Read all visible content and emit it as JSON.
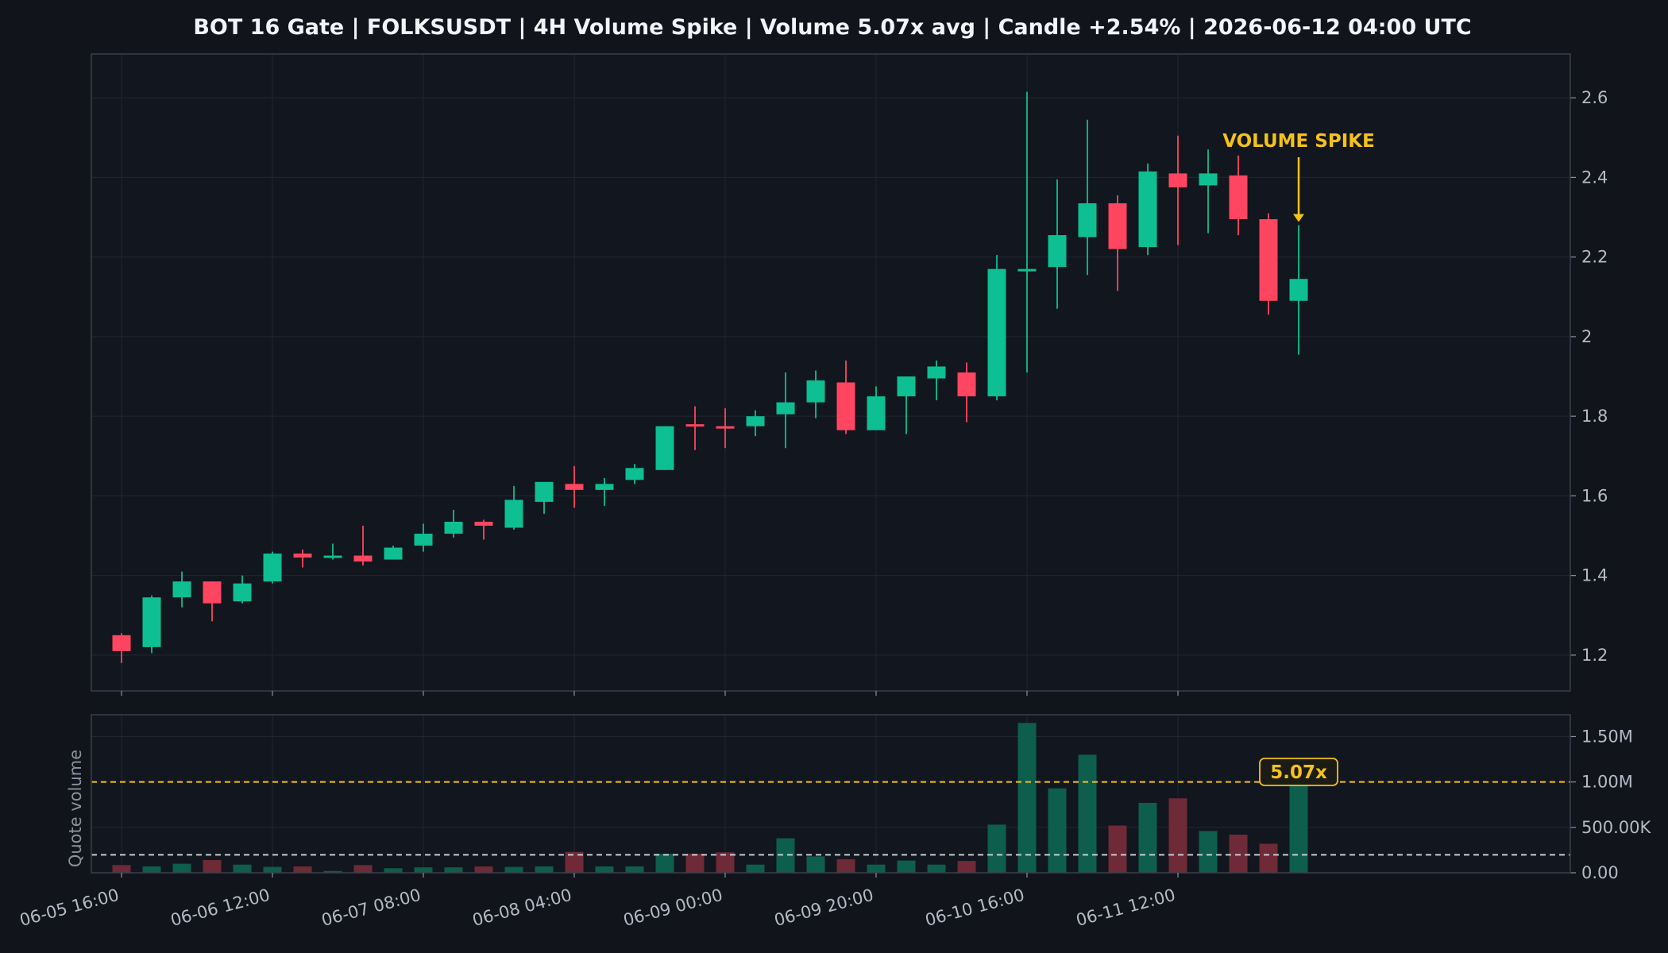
{
  "chart_data": {
    "type": "candlestick",
    "title": "BOT 16 Gate | FOLKSUSDT | 4H Volume Spike | Volume 5.07x avg | Candle +2.54% | 2026-06-12 04:00 UTC",
    "price_axis": {
      "ylim": [
        1.11,
        2.71
      ],
      "ticks": [
        1.2,
        1.4,
        1.6,
        1.8,
        2,
        2.2,
        2.4,
        2.6
      ],
      "tick_labels": [
        "1.2",
        "1.4",
        "1.6",
        "1.8",
        "2",
        "2.2",
        "2.4",
        "2.6"
      ]
    },
    "volume_axis": {
      "ylabel": "Quote volume",
      "ylim": [
        0,
        1740000
      ],
      "ticks": [
        0,
        500000,
        1000000,
        1500000
      ],
      "tick_labels": [
        "0.00",
        "500.00K",
        "1.00M",
        "1.50M"
      ]
    },
    "x_tick_labels": [
      "06-05 16:00",
      "06-06 12:00",
      "06-07 08:00",
      "06-08 04:00",
      "06-09 00:00",
      "06-09 20:00",
      "06-10 16:00",
      "06-11 12:00"
    ],
    "x_tick_indices": [
      0,
      5,
      10,
      15,
      20,
      25,
      30,
      35
    ],
    "num_slots": 48,
    "candles": [
      {
        "o": 1.25,
        "h": 1.255,
        "l": 1.18,
        "c": 1.21,
        "v": 85000
      },
      {
        "o": 1.22,
        "h": 1.35,
        "l": 1.205,
        "c": 1.345,
        "v": 70000
      },
      {
        "o": 1.345,
        "h": 1.41,
        "l": 1.32,
        "c": 1.385,
        "v": 100000
      },
      {
        "o": 1.385,
        "h": 1.385,
        "l": 1.285,
        "c": 1.33,
        "v": 140000
      },
      {
        "o": 1.335,
        "h": 1.4,
        "l": 1.33,
        "c": 1.38,
        "v": 90000
      },
      {
        "o": 1.385,
        "h": 1.46,
        "l": 1.38,
        "c": 1.455,
        "v": 65000
      },
      {
        "o": 1.455,
        "h": 1.465,
        "l": 1.42,
        "c": 1.445,
        "v": 70000
      },
      {
        "o": 1.445,
        "h": 1.48,
        "l": 1.44,
        "c": 1.45,
        "v": 20000
      },
      {
        "o": 1.45,
        "h": 1.525,
        "l": 1.425,
        "c": 1.435,
        "v": 85000
      },
      {
        "o": 1.44,
        "h": 1.475,
        "l": 1.44,
        "c": 1.47,
        "v": 50000
      },
      {
        "o": 1.475,
        "h": 1.53,
        "l": 1.46,
        "c": 1.505,
        "v": 60000
      },
      {
        "o": 1.505,
        "h": 1.565,
        "l": 1.495,
        "c": 1.535,
        "v": 60000
      },
      {
        "o": 1.535,
        "h": 1.54,
        "l": 1.49,
        "c": 1.525,
        "v": 70000
      },
      {
        "o": 1.52,
        "h": 1.625,
        "l": 1.515,
        "c": 1.59,
        "v": 65000
      },
      {
        "o": 1.585,
        "h": 1.635,
        "l": 1.555,
        "c": 1.635,
        "v": 70000
      },
      {
        "o": 1.63,
        "h": 1.675,
        "l": 1.57,
        "c": 1.615,
        "v": 230000
      },
      {
        "o": 1.615,
        "h": 1.645,
        "l": 1.575,
        "c": 1.63,
        "v": 70000
      },
      {
        "o": 1.64,
        "h": 1.68,
        "l": 1.63,
        "c": 1.67,
        "v": 70000
      },
      {
        "o": 1.665,
        "h": 1.775,
        "l": 1.665,
        "c": 1.775,
        "v": 210000
      },
      {
        "o": 1.78,
        "h": 1.825,
        "l": 1.715,
        "c": 1.775,
        "v": 210000
      },
      {
        "o": 1.775,
        "h": 1.82,
        "l": 1.72,
        "c": 1.77,
        "v": 225000
      },
      {
        "o": 1.775,
        "h": 1.815,
        "l": 1.75,
        "c": 1.8,
        "v": 90000
      },
      {
        "o": 1.805,
        "h": 1.91,
        "l": 1.72,
        "c": 1.835,
        "v": 380000
      },
      {
        "o": 1.835,
        "h": 1.915,
        "l": 1.795,
        "c": 1.89,
        "v": 180000
      },
      {
        "o": 1.885,
        "h": 1.94,
        "l": 1.755,
        "c": 1.765,
        "v": 150000
      },
      {
        "o": 1.765,
        "h": 1.875,
        "l": 1.765,
        "c": 1.85,
        "v": 90000
      },
      {
        "o": 1.85,
        "h": 1.9,
        "l": 1.755,
        "c": 1.9,
        "v": 135000
      },
      {
        "o": 1.895,
        "h": 1.94,
        "l": 1.84,
        "c": 1.925,
        "v": 90000
      },
      {
        "o": 1.91,
        "h": 1.935,
        "l": 1.785,
        "c": 1.85,
        "v": 130000
      },
      {
        "o": 1.85,
        "h": 2.205,
        "l": 1.84,
        "c": 2.17,
        "v": 530000
      },
      {
        "o": 2.165,
        "h": 2.615,
        "l": 1.91,
        "c": 2.17,
        "v": 1650000
      },
      {
        "o": 2.175,
        "h": 2.395,
        "l": 2.07,
        "c": 2.255,
        "v": 930000
      },
      {
        "o": 2.25,
        "h": 2.545,
        "l": 2.155,
        "c": 2.335,
        "v": 1300000
      },
      {
        "o": 2.335,
        "h": 2.355,
        "l": 2.115,
        "c": 2.22,
        "v": 520000
      },
      {
        "o": 2.225,
        "h": 2.435,
        "l": 2.205,
        "c": 2.415,
        "v": 770000
      },
      {
        "o": 2.41,
        "h": 2.505,
        "l": 2.23,
        "c": 2.375,
        "v": 820000
      },
      {
        "o": 2.38,
        "h": 2.47,
        "l": 2.26,
        "c": 2.41,
        "v": 460000
      },
      {
        "o": 2.405,
        "h": 2.455,
        "l": 2.255,
        "c": 2.295,
        "v": 420000
      },
      {
        "o": 2.295,
        "h": 2.31,
        "l": 2.055,
        "c": 2.09,
        "v": 320000
      },
      {
        "o": 2.09,
        "h": 2.28,
        "l": 1.955,
        "c": 2.145,
        "v": 1010000
      }
    ],
    "reference_lines": [
      {
        "label": "spike threshold",
        "value": 1000000,
        "style": "dashed",
        "color": "#f5c21b"
      },
      {
        "label": "average volume",
        "value": 198000,
        "style": "dashed",
        "color": "#c9ccd3"
      }
    ],
    "annotations": [
      {
        "text": "VOLUME SPIKE",
        "candle_index": 39,
        "color": "#f5c21b"
      },
      {
        "text": "5.07x",
        "candle_index": 39,
        "color": "#f5c21b"
      }
    ],
    "grid": true,
    "colors": {
      "background": "#11141b",
      "up": "#0dbf93",
      "down": "#ff4560",
      "up_volume": "#0e5e4d",
      "down_volume": "#6e2a36",
      "grid": "#222733",
      "axis": "#3a3f4b",
      "text": "#b4bac6",
      "highlight": "#f5c21b"
    }
  }
}
